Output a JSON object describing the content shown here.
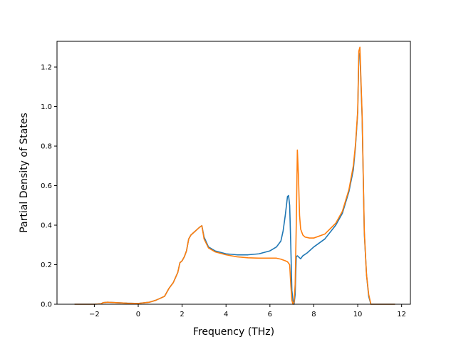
{
  "chart_data": {
    "type": "line",
    "title": "",
    "xlabel": "Frequency (THz)",
    "ylabel": "Partial Density of States",
    "xlim": [
      -3.7,
      12.4
    ],
    "ylim": [
      0.0,
      1.33
    ],
    "xticks": [
      -2,
      0,
      2,
      4,
      6,
      8,
      10,
      12
    ],
    "xtick_labels": [
      "−2",
      "0",
      "2",
      "4",
      "6",
      "8",
      "10",
      "12"
    ],
    "yticks": [
      0.0,
      0.2,
      0.4,
      0.6,
      0.8,
      1.0,
      1.2
    ],
    "ytick_labels": [
      "0.0",
      "0.2",
      "0.4",
      "0.6",
      "0.8",
      "1.0",
      "1.2"
    ],
    "grid": false,
    "legend": "none",
    "series": [
      {
        "color": "#1f77b4",
        "x": [
          -2.9,
          -2.0,
          -1.7,
          -1.6,
          -1.4,
          -1.0,
          -0.5,
          0.0,
          0.5,
          0.8,
          1.0,
          1.2,
          1.4,
          1.6,
          1.8,
          1.9,
          2.0,
          2.1,
          2.2,
          2.3,
          2.4,
          2.6,
          2.7,
          2.8,
          2.9,
          3.0,
          3.2,
          3.5,
          4.0,
          4.5,
          5.0,
          5.5,
          6.0,
          6.3,
          6.5,
          6.6,
          6.7,
          6.8,
          6.85,
          6.9,
          6.95,
          7.0,
          7.05,
          7.1,
          7.15,
          7.2,
          7.25,
          7.3,
          7.4,
          7.5,
          7.7,
          8.0,
          8.5,
          9.0,
          9.3,
          9.6,
          9.8,
          9.9,
          10.0,
          10.05,
          10.1,
          10.2,
          10.3,
          10.4,
          10.5,
          10.6,
          10.8,
          11.0,
          11.7
        ],
        "y": [
          0.0,
          0.0,
          0.002,
          0.008,
          0.01,
          0.008,
          0.005,
          0.004,
          0.01,
          0.02,
          0.03,
          0.04,
          0.08,
          0.11,
          0.16,
          0.21,
          0.22,
          0.24,
          0.27,
          0.33,
          0.35,
          0.37,
          0.38,
          0.39,
          0.397,
          0.34,
          0.29,
          0.27,
          0.255,
          0.25,
          0.25,
          0.255,
          0.27,
          0.29,
          0.32,
          0.37,
          0.45,
          0.545,
          0.55,
          0.5,
          0.3,
          0.07,
          0.02,
          0.0,
          0.05,
          0.24,
          0.245,
          0.24,
          0.23,
          0.245,
          0.26,
          0.29,
          0.33,
          0.4,
          0.46,
          0.57,
          0.68,
          0.8,
          0.97,
          1.26,
          1.27,
          0.95,
          0.36,
          0.15,
          0.04,
          0.0,
          0.0,
          0.0,
          0.0
        ]
      },
      {
        "color": "#ff7f0e",
        "x": [
          -2.9,
          -2.0,
          -1.7,
          -1.6,
          -1.4,
          -1.0,
          -0.5,
          0.0,
          0.5,
          0.8,
          1.0,
          1.2,
          1.4,
          1.6,
          1.8,
          1.9,
          2.0,
          2.1,
          2.2,
          2.3,
          2.4,
          2.6,
          2.7,
          2.8,
          2.9,
          3.0,
          3.2,
          3.5,
          4.0,
          4.5,
          5.0,
          5.5,
          6.0,
          6.3,
          6.5,
          6.7,
          6.8,
          6.9,
          6.95,
          7.0,
          7.05,
          7.1,
          7.15,
          7.2,
          7.25,
          7.3,
          7.35,
          7.4,
          7.5,
          7.6,
          7.8,
          8.0,
          8.5,
          9.0,
          9.3,
          9.6,
          9.8,
          9.9,
          10.0,
          10.05,
          10.1,
          10.2,
          10.3,
          10.4,
          10.5,
          10.6,
          10.8,
          11.0,
          11.7
        ],
        "y": [
          0.0,
          0.0,
          0.002,
          0.008,
          0.01,
          0.008,
          0.005,
          0.004,
          0.01,
          0.02,
          0.03,
          0.04,
          0.08,
          0.11,
          0.16,
          0.21,
          0.22,
          0.24,
          0.27,
          0.33,
          0.35,
          0.37,
          0.38,
          0.39,
          0.397,
          0.33,
          0.285,
          0.265,
          0.25,
          0.24,
          0.235,
          0.233,
          0.233,
          0.233,
          0.228,
          0.22,
          0.215,
          0.2,
          0.1,
          0.02,
          0.0,
          0.01,
          0.1,
          0.4,
          0.78,
          0.65,
          0.45,
          0.38,
          0.35,
          0.34,
          0.335,
          0.335,
          0.355,
          0.41,
          0.47,
          0.58,
          0.7,
          0.81,
          0.98,
          1.28,
          1.3,
          0.96,
          0.37,
          0.15,
          0.05,
          0.0,
          0.0,
          0.0,
          0.0
        ]
      }
    ]
  }
}
